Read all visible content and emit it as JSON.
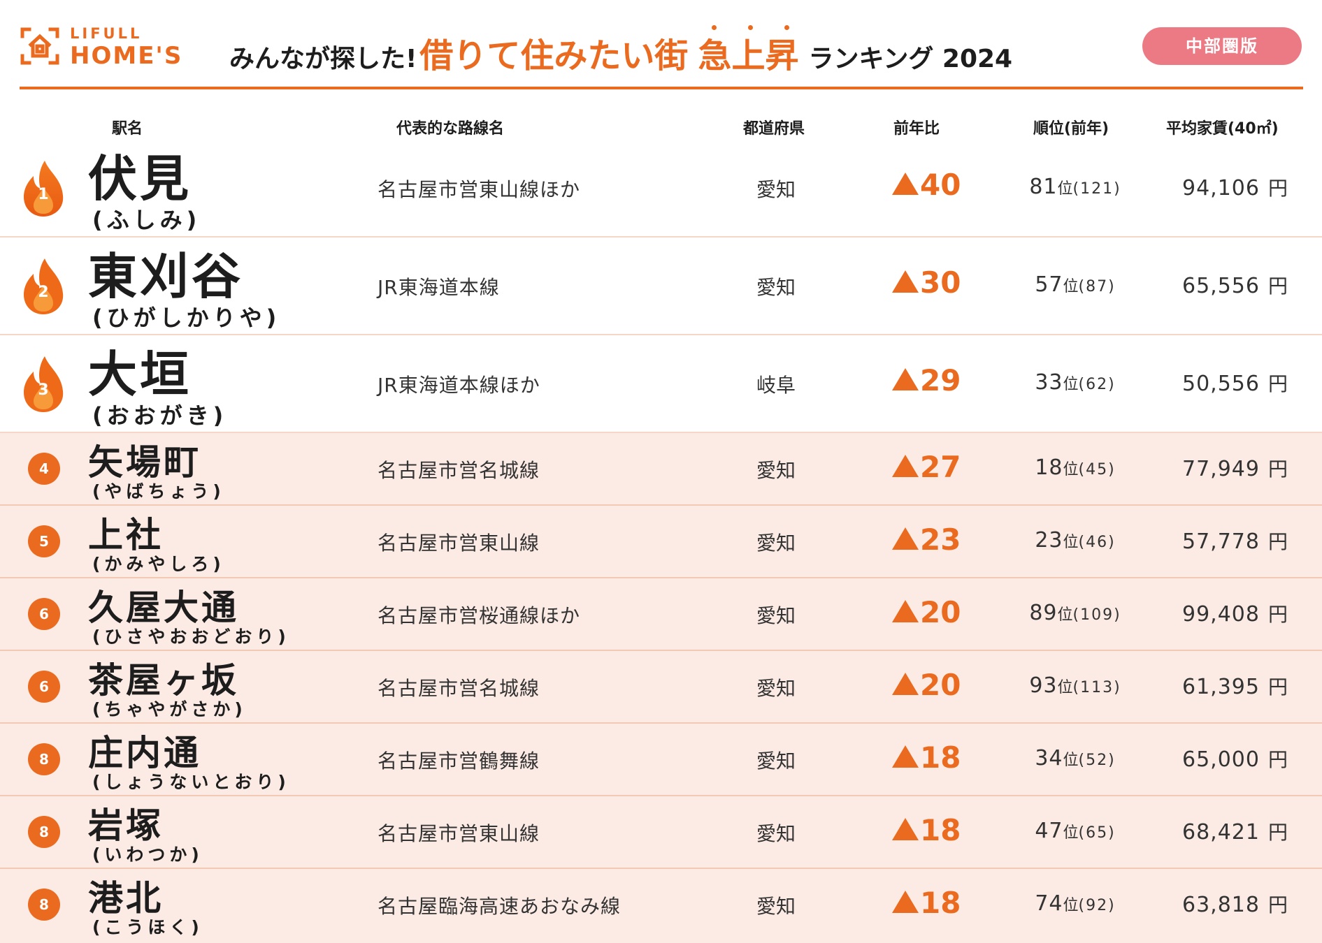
{
  "header": {
    "logo_top": "LIFULL",
    "logo_bottom": "HOME'S",
    "title_prefix": "みんなが探した!",
    "title_main": "借りて住みたい街",
    "title_emphasis": "急上昇",
    "title_suffix": "ランキング 2024",
    "region_badge": "中部圏版",
    "accent_color": "#ea6b1f",
    "badge_color": "#ec7a84"
  },
  "columns": {
    "station": "駅名",
    "line": "代表的な路線名",
    "prefecture": "都道府県",
    "diff": "前年比",
    "rank": "順位(前年)",
    "rent": "平均家賃(40㎡)"
  },
  "rows": [
    {
      "rank": "1",
      "station": "伏見",
      "reading": "(ふしみ)",
      "line": "名古屋市営東山線ほか",
      "prefecture": "愛知",
      "diff": "40",
      "rank_now": "81",
      "rank_unit": "位",
      "rank_prev": "(121)",
      "rent": "94,106",
      "rent_unit": "円"
    },
    {
      "rank": "2",
      "station": "東刈谷",
      "reading": "(ひがしかりや)",
      "line": "JR東海道本線",
      "prefecture": "愛知",
      "diff": "30",
      "rank_now": "57",
      "rank_unit": "位",
      "rank_prev": "(87)",
      "rent": "65,556",
      "rent_unit": "円"
    },
    {
      "rank": "3",
      "station": "大垣",
      "reading": "(おおがき)",
      "line": "JR東海道本線ほか",
      "prefecture": "岐阜",
      "diff": "29",
      "rank_now": "33",
      "rank_unit": "位",
      "rank_prev": "(62)",
      "rent": "50,556",
      "rent_unit": "円"
    },
    {
      "rank": "4",
      "station": "矢場町",
      "reading": "(やばちょう)",
      "line": "名古屋市営名城線",
      "prefecture": "愛知",
      "diff": "27",
      "rank_now": "18",
      "rank_unit": "位",
      "rank_prev": "(45)",
      "rent": "77,949",
      "rent_unit": "円"
    },
    {
      "rank": "5",
      "station": "上社",
      "reading": "(かみやしろ)",
      "line": "名古屋市営東山線",
      "prefecture": "愛知",
      "diff": "23",
      "rank_now": "23",
      "rank_unit": "位",
      "rank_prev": "(46)",
      "rent": "57,778",
      "rent_unit": "円"
    },
    {
      "rank": "6",
      "station": "久屋大通",
      "reading": "(ひさやおおどおり)",
      "line": "名古屋市営桜通線ほか",
      "prefecture": "愛知",
      "diff": "20",
      "rank_now": "89",
      "rank_unit": "位",
      "rank_prev": "(109)",
      "rent": "99,408",
      "rent_unit": "円"
    },
    {
      "rank": "6",
      "station": "茶屋ヶ坂",
      "reading": "(ちゃやがさか)",
      "line": "名古屋市営名城線",
      "prefecture": "愛知",
      "diff": "20",
      "rank_now": "93",
      "rank_unit": "位",
      "rank_prev": "(113)",
      "rent": "61,395",
      "rent_unit": "円"
    },
    {
      "rank": "8",
      "station": "庄内通",
      "reading": "(しょうないとおり)",
      "line": "名古屋市営鶴舞線",
      "prefecture": "愛知",
      "diff": "18",
      "rank_now": "34",
      "rank_unit": "位",
      "rank_prev": "(52)",
      "rent": "65,000",
      "rent_unit": "円"
    },
    {
      "rank": "8",
      "station": "岩塚",
      "reading": "(いわつか)",
      "line": "名古屋市営東山線",
      "prefecture": "愛知",
      "diff": "18",
      "rank_now": "47",
      "rank_unit": "位",
      "rank_prev": "(65)",
      "rent": "68,421",
      "rent_unit": "円"
    },
    {
      "rank": "8",
      "station": "港北",
      "reading": "(こうほく)",
      "line": "名古屋臨海高速あおなみ線",
      "prefecture": "愛知",
      "diff": "18",
      "rank_now": "74",
      "rank_unit": "位",
      "rank_prev": "(92)",
      "rent": "63,818",
      "rent_unit": "円"
    }
  ]
}
